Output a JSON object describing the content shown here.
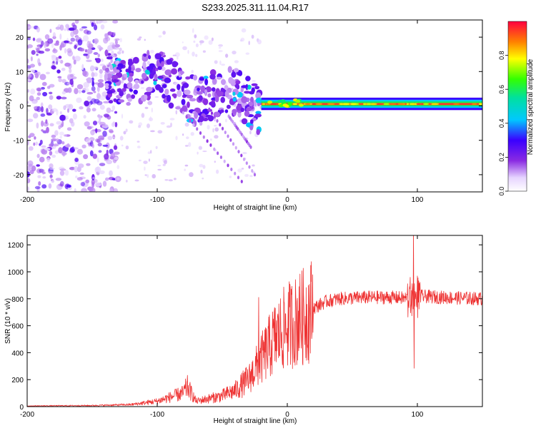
{
  "title": "S233.2025.311.11.04.R17",
  "chart_data": [
    {
      "type": "heatmap",
      "name": "spectrogram",
      "xlabel": "Height of straight line (km)",
      "ylabel": "Frequency (Hz)",
      "xlim": [
        -200,
        150
      ],
      "ylim": [
        -25,
        25
      ],
      "xticks": [
        -200,
        -100,
        0,
        100
      ],
      "yticks": [
        -20,
        -10,
        0,
        10,
        20
      ],
      "colorbar": {
        "label": "Normalized spectral amplitude",
        "range": [
          0,
          1
        ],
        "ticks": [
          "0.0",
          "0.2",
          "0.4",
          "0.6",
          "0.8"
        ]
      },
      "features": [
        {
          "description": "scattered noise",
          "x_range": [
            -200,
            -135
          ],
          "freq_range": [
            -25,
            25
          ],
          "amplitude": 0.1
        },
        {
          "description": "diffuse signal track",
          "x_range": [
            -140,
            -20
          ],
          "freq_center_start": 10,
          "freq_center_end": 0,
          "amplitude": 0.25
        },
        {
          "description": "narrowband carrier",
          "x_range": [
            -20,
            150
          ],
          "freq": 0.5,
          "amplitude": 0.95
        }
      ]
    },
    {
      "type": "line",
      "name": "snr",
      "xlabel": "Height of straight line (km)",
      "ylabel": "SNR (10 * v/v)",
      "xlim": [
        -200,
        150
      ],
      "ylim": [
        0,
        1270
      ],
      "xticks": [
        -200,
        -100,
        0,
        100
      ],
      "yticks": [
        0,
        200,
        400,
        600,
        800,
        1000,
        1200
      ],
      "color": "#ee3333",
      "series_envelope": {
        "x": [
          -200,
          -150,
          -120,
          -100,
          -90,
          -80,
          -77,
          -70,
          -60,
          -50,
          -40,
          -30,
          -20,
          -10,
          0,
          10,
          20,
          30,
          40,
          60,
          80,
          97,
          100,
          120,
          150
        ],
        "y": [
          5,
          8,
          15,
          40,
          70,
          100,
          150,
          40,
          60,
          80,
          120,
          200,
          350,
          500,
          600,
          650,
          730,
          780,
          800,
          810,
          810,
          800,
          820,
          810,
          800
        ]
      },
      "spikes": [
        {
          "x": -22,
          "y": 810
        },
        {
          "x": 9,
          "y": 890
        },
        {
          "x": 97,
          "y": 1270
        },
        {
          "x": 97.5,
          "y": 380
        }
      ]
    }
  ]
}
